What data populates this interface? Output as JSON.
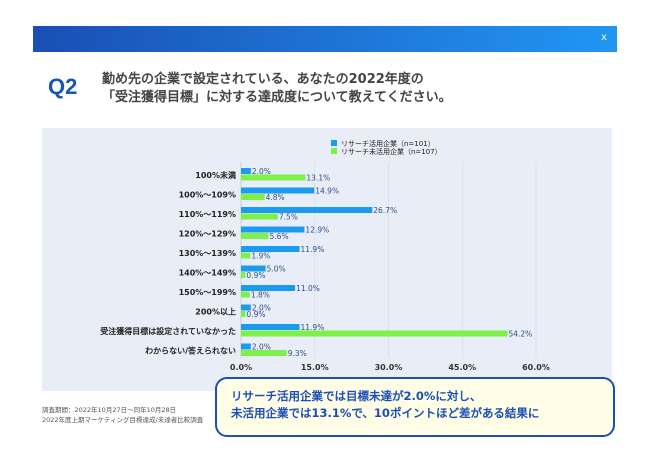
{
  "header": {
    "close_label": "x"
  },
  "question": {
    "number": "Q2",
    "line1": "勤め先の企業で設定されている、あなたの2022年度の",
    "line2": "「受注獲得目標」に対する達成度について教えてください。"
  },
  "colors": {
    "blue": "#1a9bf0",
    "green": "#7ef04a"
  },
  "chart_data": {
    "type": "bar",
    "orientation": "horizontal",
    "categories": [
      "100%未満",
      "100%〜109%",
      "110%〜119%",
      "120%〜129%",
      "130%〜139%",
      "140%〜149%",
      "150%〜199%",
      "200%以上",
      "受注獲得目標は設定されていなかった",
      "わからない/答えられない"
    ],
    "series": [
      {
        "name": "リサーチ活用企業（n=101）",
        "values": [
          2.0,
          14.9,
          26.7,
          12.9,
          11.9,
          5.0,
          11.0,
          2.0,
          11.9,
          2.0
        ]
      },
      {
        "name": "リサーチ未活用企業（n=107）",
        "values": [
          13.1,
          4.8,
          7.5,
          5.6,
          1.9,
          0.9,
          1.8,
          0.9,
          54.2,
          9.3
        ]
      }
    ],
    "xlim": [
      0,
      60
    ],
    "xticks": [
      "0.0%",
      "15.0%",
      "30.0%",
      "45.0%",
      "60.0%"
    ],
    "grid": true,
    "legend": "top-right"
  },
  "footnote": {
    "line1": "調査期間：2022年10月27日〜同年10月28日",
    "line2": "2022年度上期マーケティング目標達成/未達者比較調査"
  },
  "callout": {
    "line1": "リサーチ活用企業では目標未達が2.0%に対し、",
    "line2": "未活用企業では13.1%で、10ポイントほど差がある結果に"
  }
}
